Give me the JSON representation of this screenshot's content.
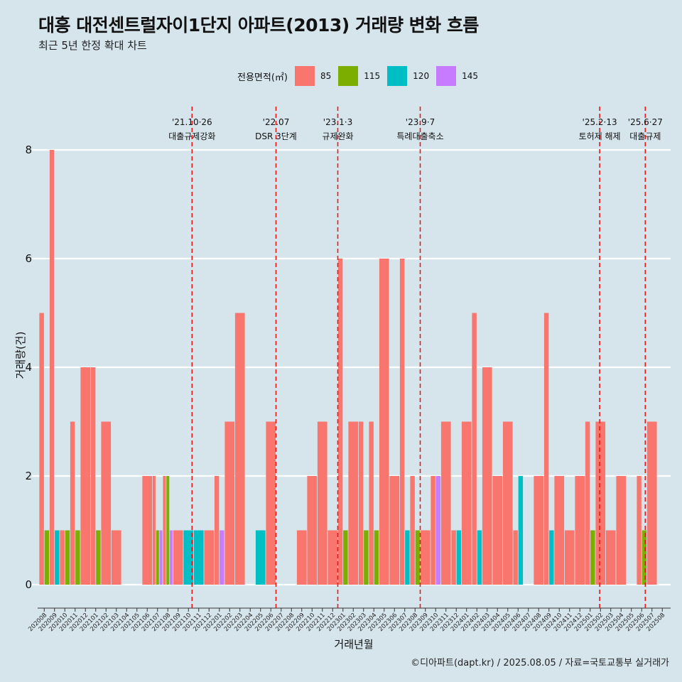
{
  "title": "대흥 대전센트럴자이1단지 아파트(2013) 거래량 변화 흐름",
  "subtitle": "최근 5년 한정 확대 차트",
  "legend": {
    "title": "전용면적(㎡)",
    "items": [
      {
        "label": "85",
        "color": "#f8766d"
      },
      {
        "label": "115",
        "color": "#7cae00"
      },
      {
        "label": "120",
        "color": "#00bfc4"
      },
      {
        "label": "145",
        "color": "#c77cff"
      }
    ]
  },
  "caption": "©디아파트(dapt.kr) / 2025.08.05 / 자료=국토교통부 실거래가",
  "chart_data": {
    "type": "bar",
    "xlabel": "거래년월",
    "ylabel": "거래량(건)",
    "ylim": [
      0,
      8
    ],
    "yticks": [
      0,
      2,
      4,
      6,
      8
    ],
    "grid": true,
    "legend_position": "top",
    "categories": [
      "202008",
      "202009",
      "202010",
      "202011",
      "202012",
      "202101",
      "202102",
      "202103",
      "202104",
      "202105",
      "202106",
      "202107",
      "202108",
      "202109",
      "202110",
      "202111",
      "202112",
      "202201",
      "202202",
      "202203",
      "202204",
      "202205",
      "202206",
      "202207",
      "202208",
      "202209",
      "202210",
      "202211",
      "202212",
      "202301",
      "202302",
      "202303",
      "202304",
      "202305",
      "202306",
      "202307",
      "202308",
      "202309",
      "202310",
      "202311",
      "202312",
      "202401",
      "202402",
      "202403",
      "202404",
      "202405",
      "202406",
      "202407",
      "202408",
      "202409",
      "202410",
      "202411",
      "202412",
      "202501",
      "202502",
      "202503",
      "202504",
      "202505",
      "202506",
      "202507",
      "202508"
    ],
    "series": [
      {
        "name": "85",
        "color": "#f8766d",
        "values": [
          5,
          8,
          1,
          3,
          4,
          4,
          3,
          1,
          0,
          0,
          2,
          2,
          2,
          1,
          0,
          0,
          1,
          2,
          3,
          5,
          0,
          0,
          3,
          0,
          0,
          1,
          2,
          3,
          1,
          6,
          3,
          3,
          3,
          6,
          2,
          6,
          2,
          1,
          2,
          3,
          1,
          3,
          5,
          4,
          2,
          3,
          1,
          0,
          2,
          5,
          2,
          1,
          2,
          3,
          3,
          1,
          2,
          0,
          2,
          3,
          0
        ]
      },
      {
        "name": "115",
        "color": "#7cae00",
        "values": [
          1,
          0,
          1,
          1,
          0,
          1,
          0,
          0,
          0,
          0,
          0,
          1,
          2,
          0,
          0,
          0,
          0,
          0,
          0,
          0,
          0,
          0,
          0,
          0,
          0,
          0,
          0,
          0,
          0,
          1,
          0,
          1,
          1,
          0,
          0,
          0,
          1,
          0,
          0,
          0,
          0,
          0,
          0,
          0,
          0,
          0,
          0,
          0,
          0,
          0,
          0,
          0,
          0,
          1,
          0,
          0,
          0,
          0,
          1,
          0,
          0
        ]
      },
      {
        "name": "120",
        "color": "#00bfc4",
        "values": [
          0,
          1,
          0,
          0,
          0,
          0,
          0,
          0,
          0,
          0,
          0,
          0,
          0,
          0,
          1,
          1,
          0,
          0,
          0,
          0,
          0,
          1,
          0,
          0,
          0,
          0,
          0,
          0,
          0,
          0,
          0,
          0,
          0,
          0,
          0,
          1,
          0,
          0,
          0,
          0,
          1,
          0,
          1,
          0,
          0,
          0,
          2,
          0,
          0,
          1,
          0,
          0,
          0,
          0,
          0,
          0,
          0,
          0,
          0,
          0,
          0
        ]
      },
      {
        "name": "145",
        "color": "#c77cff",
        "values": [
          0,
          0,
          0,
          0,
          0,
          0,
          0,
          0,
          0,
          0,
          0,
          1,
          1,
          0,
          0,
          0,
          0,
          1,
          0,
          0,
          0,
          0,
          0,
          0,
          0,
          0,
          0,
          0,
          0,
          0,
          0,
          0,
          0,
          0,
          0,
          0,
          0,
          0,
          2,
          0,
          0,
          0,
          0,
          0,
          0,
          0,
          0,
          0,
          0,
          0,
          0,
          0,
          0,
          0,
          0,
          0,
          0,
          0,
          0,
          0,
          0
        ]
      }
    ],
    "annotations": [
      {
        "date": "'21.10·26",
        "label": "대출규제강화",
        "at": "202110",
        "offset": 0.85
      },
      {
        "date": "'22.07",
        "label": "DSR 3단계",
        "at": "202207",
        "offset": 0.0
      },
      {
        "date": "'23.1·3",
        "label": "규제완화",
        "at": "202301",
        "offset": 0.0
      },
      {
        "date": "'23.9·7",
        "label": "특례대출축소",
        "at": "202309",
        "offset": 0.0
      },
      {
        "date": "'25.2·13",
        "label": "토허제 해제",
        "at": "202502",
        "offset": 0.42
      },
      {
        "date": "'25.6·27",
        "label": "대출규제",
        "at": "202506",
        "offset": 0.85
      }
    ]
  }
}
